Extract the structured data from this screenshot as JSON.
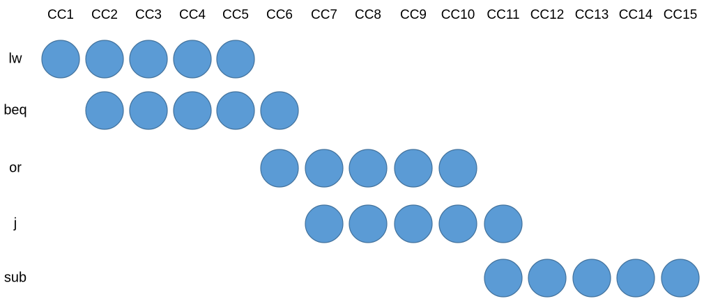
{
  "diagram": {
    "cycles": [
      "CC1",
      "CC2",
      "CC3",
      "CC4",
      "CC5",
      "CC6",
      "CC7",
      "CC8",
      "CC9",
      "CC10",
      "CC11",
      "CC12",
      "CC13",
      "CC14",
      "CC15"
    ],
    "instructions": [
      {
        "label": "lw",
        "start_cycle": 1,
        "stages": 5
      },
      {
        "label": "beq",
        "start_cycle": 2,
        "stages": 5
      },
      {
        "label": "or",
        "start_cycle": 6,
        "stages": 5
      },
      {
        "label": "j",
        "start_cycle": 7,
        "stages": 5
      },
      {
        "label": "sub",
        "start_cycle": 11,
        "stages": 5
      }
    ],
    "colors": {
      "stage_fill": "#5b9bd5",
      "stage_stroke": "#41719c",
      "text": "#000000"
    }
  }
}
